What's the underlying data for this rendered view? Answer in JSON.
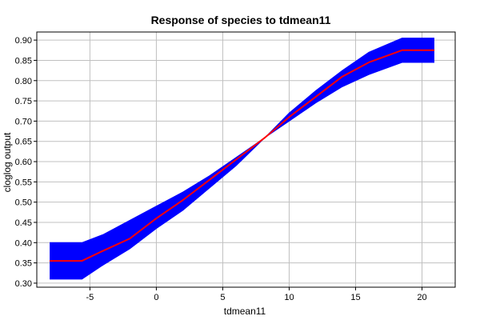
{
  "chart_data": {
    "type": "line",
    "title": "Response of species to tdmean11",
    "xlabel": "tdmean11",
    "ylabel": "cloglog output",
    "xlim": [
      -9.0,
      22.5
    ],
    "ylim": [
      0.29,
      0.92
    ],
    "x_ticks": [
      -5,
      0,
      5,
      10,
      15,
      20
    ],
    "y_ticks": [
      0.3,
      0.35,
      0.4,
      0.45,
      0.5,
      0.55,
      0.6,
      0.65,
      0.7,
      0.75,
      0.8,
      0.85,
      0.9
    ],
    "x_tick_labels": [
      "-5",
      "0",
      "5",
      "10",
      "15",
      "20"
    ],
    "y_tick_labels": [
      "0.30",
      "0.35",
      "0.40",
      "0.45",
      "0.50",
      "0.55",
      "0.60",
      "0.65",
      "0.70",
      "0.75",
      "0.80",
      "0.85",
      "0.90"
    ],
    "grid": true,
    "colors": {
      "mean_line": "#ff0000",
      "band": "#0000ff",
      "grid": "#c0c0c0",
      "axis": "#000000"
    },
    "series": [
      {
        "x": [
          -8.0,
          -5.6,
          -4.0,
          -2.0,
          0.0,
          2.0,
          4.0,
          6.0,
          8.2,
          10.0,
          12.0,
          14.0,
          16.0,
          18.5,
          20.9
        ],
        "values": [
          0.355,
          0.355,
          0.38,
          0.41,
          0.46,
          0.505,
          0.555,
          0.605,
          0.66,
          0.71,
          0.76,
          0.81,
          0.845,
          0.875,
          0.875
        ]
      },
      {
        "x": [
          -8.0,
          -5.6,
          -4.0,
          -2.0,
          0.0,
          2.0,
          4.0,
          6.0,
          8.2,
          10.0,
          12.0,
          14.0,
          16.0,
          18.5,
          20.9
        ],
        "values": [
          0.4,
          0.4,
          0.42,
          0.455,
          0.49,
          0.525,
          0.565,
          0.61,
          0.66,
          0.72,
          0.775,
          0.825,
          0.87,
          0.905,
          0.905
        ]
      },
      {
        "x": [
          -8.0,
          -5.6,
          -4.0,
          -2.0,
          0.0,
          2.0,
          4.0,
          6.0,
          8.2,
          10.0,
          12.0,
          14.0,
          16.0,
          18.5,
          20.9
        ],
        "values": [
          0.31,
          0.31,
          0.345,
          0.385,
          0.435,
          0.48,
          0.535,
          0.59,
          0.66,
          0.7,
          0.745,
          0.785,
          0.815,
          0.845,
          0.845
        ]
      }
    ]
  }
}
